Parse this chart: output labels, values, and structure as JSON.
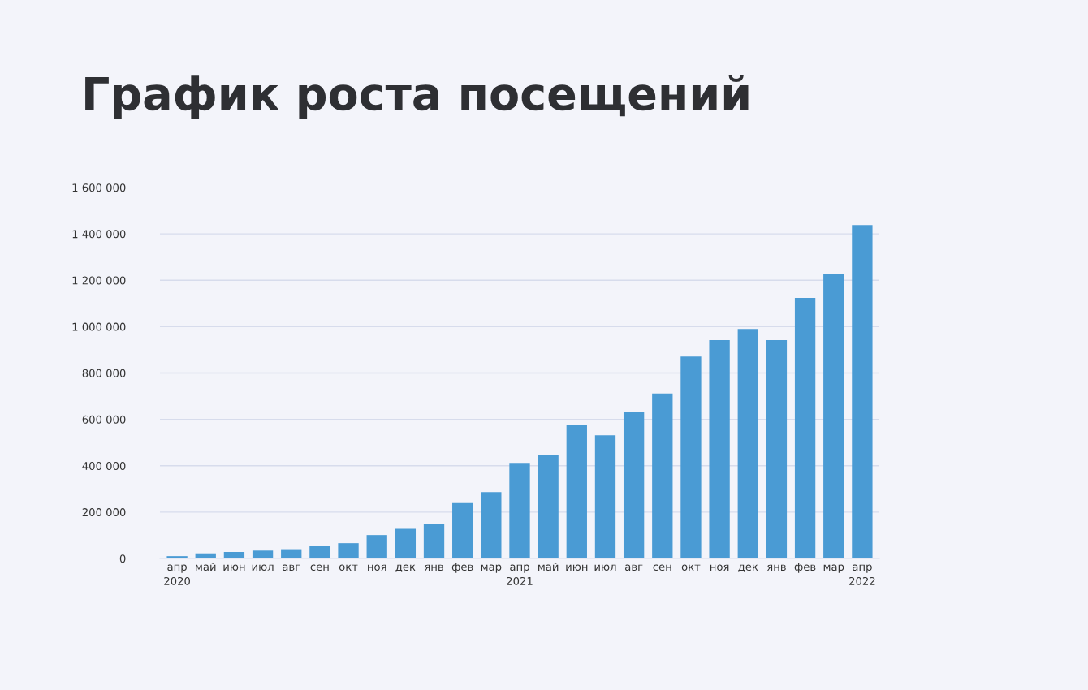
{
  "chart_data": {
    "type": "bar",
    "title": "График роста посещений",
    "categories": [
      "апр\n2020",
      "май",
      "июн",
      "июл",
      "авг",
      "сен",
      "окт",
      "ноя",
      "дек",
      "янв",
      "фев",
      "мар",
      "апр\n2021",
      "май",
      "июн",
      "июл",
      "авг",
      "сен",
      "окт",
      "ноя",
      "дек",
      "янв",
      "фев",
      "мар",
      "апр\n2022"
    ],
    "values": [
      10000,
      22000,
      28000,
      34000,
      40000,
      54000,
      66000,
      101000,
      128000,
      148000,
      239000,
      286000,
      412000,
      448000,
      574000,
      531000,
      630000,
      712000,
      871000,
      942000,
      990000,
      942000,
      1124000,
      1227000,
      1438000
    ],
    "color": "#4a9bd4",
    "ylim": [
      0,
      1600000
    ],
    "yticks": [
      {
        "value": 0,
        "label": "0"
      },
      {
        "value": 200000,
        "label": "200 000"
      },
      {
        "value": 400000,
        "label": "400 000"
      },
      {
        "value": 600000,
        "label": "600 000"
      },
      {
        "value": 800000,
        "label": "800 000"
      },
      {
        "value": 1000000,
        "label": "1 000 000"
      },
      {
        "value": 1200000,
        "label": "1 200 000"
      },
      {
        "value": 1400000,
        "label": "1 400 000"
      },
      {
        "value": 1600000,
        "label": "1 600 000"
      }
    ],
    "grid": "y",
    "legend": false
  }
}
